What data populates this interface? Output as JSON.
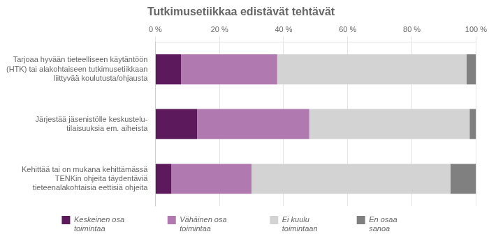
{
  "chart_data": {
    "type": "bar",
    "orientation": "horizontal",
    "stacked": true,
    "title": "Tutkimusetiikkaa edistävät tehtävät",
    "categories": [
      "Tarjoaa hyvään tieteelliseen käytäntöön\n(HTK) tai alakohtaiseen tutkimusetiikkaan\nliittyvää koulutusta/ohjausta",
      "Järjestää jäsenistölle keskustelu-\ntilaisuuksia em. aiheista",
      "Kehittää tai on mukana kehittämässä\nTENKin ohjeita täydentäviä\ntieteenalakohtaisia eettisiä ohjeita"
    ],
    "series": [
      {
        "name": "Keskeinen osa\ntoimintaa",
        "color": "#5c1a5c",
        "values": [
          8,
          13,
          5
        ]
      },
      {
        "name": "Vähäinen osa\ntoimintaa",
        "color": "#b07ab0",
        "values": [
          30,
          35,
          25
        ]
      },
      {
        "name": "Ei kuulu\ntoimintaan",
        "color": "#d3d3d3",
        "values": [
          59,
          50,
          62
        ]
      },
      {
        "name": "En osaa\nsanoa",
        "color": "#808080",
        "values": [
          3,
          2,
          8
        ]
      }
    ],
    "xlim": [
      0,
      100
    ],
    "xticks": [
      {
        "value": 0,
        "label": "0 %"
      },
      {
        "value": 20,
        "label": "20 %"
      },
      {
        "value": 40,
        "label": "40 %"
      },
      {
        "value": 60,
        "label": "60 %"
      },
      {
        "value": 80,
        "label": "80 %"
      },
      {
        "value": 100,
        "label": "100 %"
      }
    ],
    "grid": true,
    "legend": "bottom"
  }
}
